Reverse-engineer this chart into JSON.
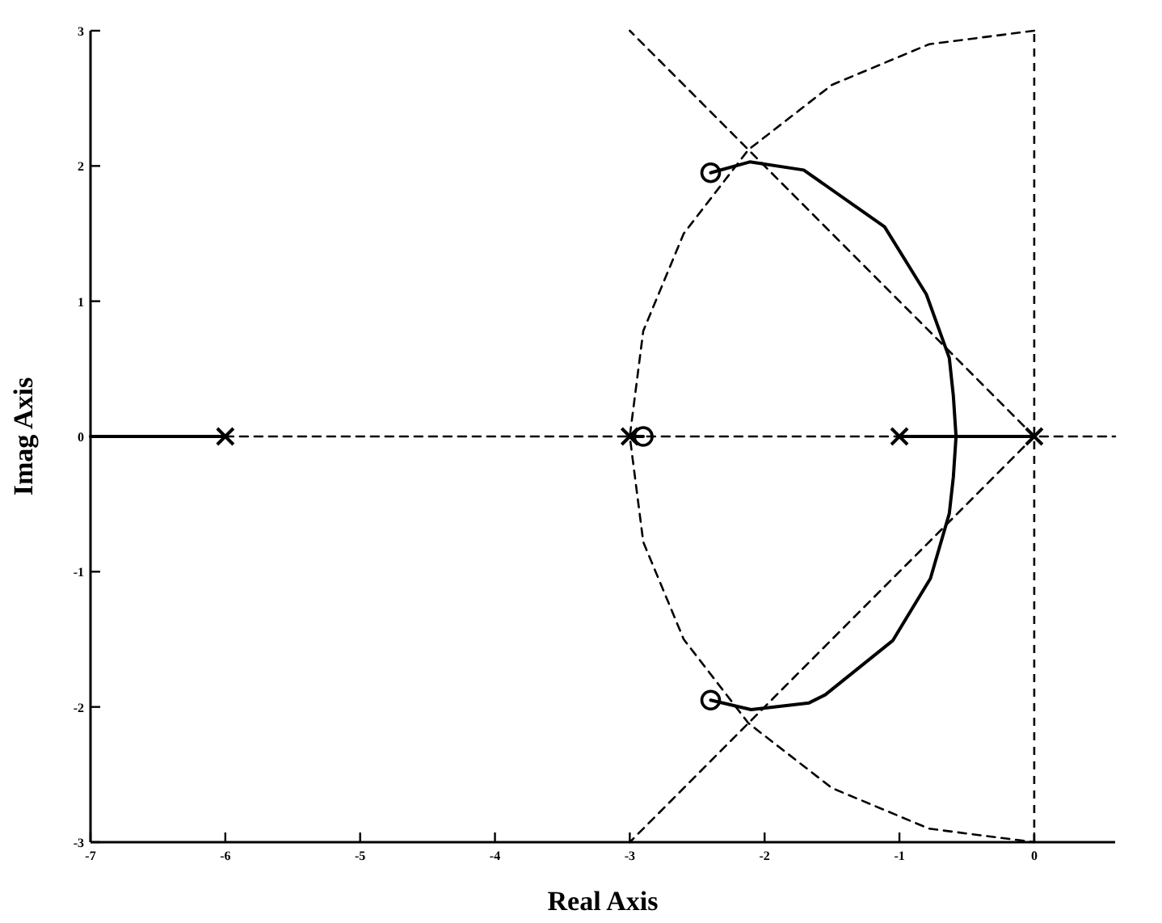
{
  "chart_data": {
    "type": "line",
    "xlabel": "Real Axis",
    "ylabel": "Imag Axis",
    "xlim": [
      -7,
      0.6
    ],
    "ylim": [
      -3,
      3
    ],
    "xticks": [
      -7,
      -6,
      -5,
      -4,
      -3,
      -2,
      -1,
      0
    ],
    "yticks": [
      -3,
      -2,
      -1,
      0,
      1,
      2,
      3
    ],
    "grid": false,
    "ref_lines": [
      {
        "axis": "x",
        "value": 0,
        "line_style": "dashed",
        "color": "#000000"
      }
    ],
    "series": [
      {
        "line_style": "dashed",
        "color": "#000000",
        "x": [
          -6,
          0.6
        ],
        "values": [
          0,
          0
        ]
      },
      {
        "type": "line",
        "line_style": "dashed",
        "color": "#000000",
        "x": [
          0,
          -0.78,
          -1.5,
          -2.12,
          -2.6,
          -2.9,
          -3,
          -2.9,
          -2.6,
          -2.12,
          -1.5,
          -0.78,
          0
        ],
        "values": [
          3,
          2.9,
          2.6,
          2.12,
          1.5,
          0.78,
          0,
          -0.78,
          -1.5,
          -2.12,
          -2.6,
          -2.9,
          -3
        ]
      },
      {
        "type": "line",
        "line_style": "dashed",
        "color": "#000000",
        "x": [
          0,
          -3
        ],
        "values": [
          0,
          3
        ]
      },
      {
        "type": "line",
        "line_style": "dashed",
        "color": "#000000",
        "x": [
          0,
          -3
        ],
        "values": [
          0,
          -3
        ]
      },
      {
        "type": "line",
        "line_style": "solid",
        "color": "#000000",
        "x": [
          -7,
          -6
        ],
        "values": [
          0,
          0
        ]
      },
      {
        "type": "line",
        "line_style": "solid",
        "color": "#000000",
        "x": [
          -3,
          -2.9
        ],
        "values": [
          0,
          0
        ]
      },
      {
        "type": "line",
        "line_style": "solid",
        "color": "#000000",
        "x": [
          -1,
          0
        ],
        "values": [
          0,
          0
        ]
      },
      {
        "line_style": "solid",
        "color": "#000000",
        "x": [
          -2.4,
          -2.11,
          -1.71,
          -1.11,
          -0.8,
          -0.63,
          -0.6,
          -0.58,
          -0.6,
          -0.63,
          -0.77,
          -1.05,
          -1.55,
          -1.67,
          -2.1,
          -2.4
        ],
        "values": [
          1.95,
          2.03,
          1.97,
          1.55,
          1.05,
          0.58,
          0.3,
          0,
          -0.3,
          -0.57,
          -1.05,
          -1.51,
          -1.91,
          -1.97,
          -2.02,
          -1.95
        ]
      },
      {
        "type": "scatter",
        "marker": "cross",
        "color": "#000000",
        "x": [
          -6,
          -3,
          -1,
          0
        ],
        "values": [
          0,
          0,
          0,
          0
        ]
      },
      {
        "type": "scatter",
        "marker": "circle",
        "color": "#000000",
        "x": [
          -2.9,
          -2.4,
          -2.4
        ],
        "values": [
          0,
          1.95,
          -1.95
        ]
      }
    ]
  }
}
